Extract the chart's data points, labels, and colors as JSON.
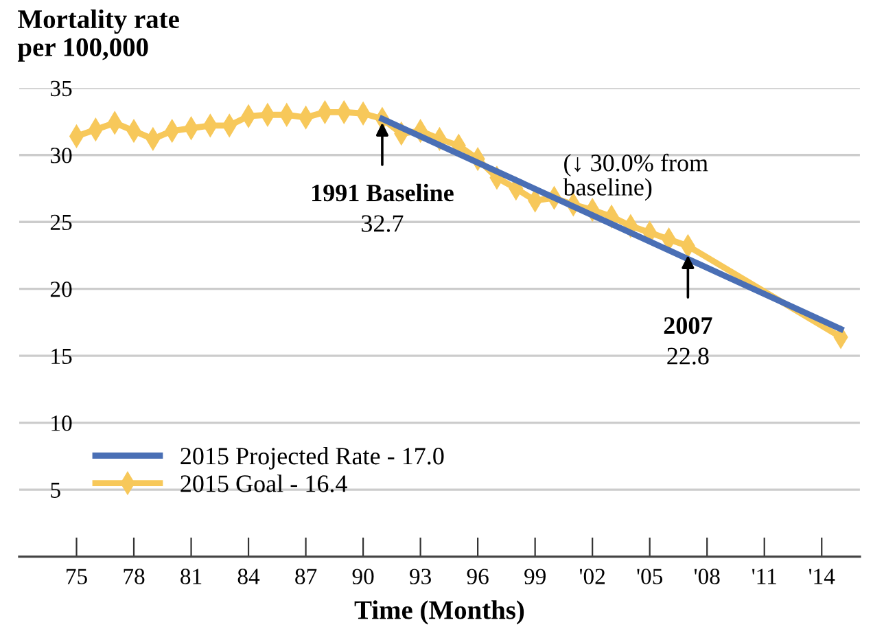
{
  "chart_data": {
    "type": "line",
    "title": "Mortality rate\nper 100,000",
    "xlabel": "Time (Months)",
    "series": [
      {
        "name": "2015 Projected Rate - 17.0",
        "color": "#4a6fb5",
        "x": [
          1991,
          2015
        ],
        "values": [
          32.7,
          17.0
        ],
        "marker": "none"
      },
      {
        "name": "2015 Goal - 16.4",
        "color": "#f7c85a",
        "x": [
          1975,
          1976,
          1977,
          1978,
          1979,
          1980,
          1981,
          1982,
          1983,
          1984,
          1985,
          1986,
          1987,
          1988,
          1989,
          1990,
          1991,
          1992,
          1993,
          1994,
          1995,
          1996,
          1997,
          1998,
          1999,
          2000,
          2001,
          2002,
          2003,
          2004,
          2005,
          2006,
          2007,
          2015
        ],
        "values": [
          31.4,
          31.9,
          32.4,
          31.8,
          31.2,
          31.8,
          32.0,
          32.2,
          32.2,
          32.9,
          33.0,
          33.0,
          32.8,
          33.2,
          33.2,
          33.1,
          32.7,
          31.6,
          31.8,
          31.2,
          30.7,
          29.7,
          28.3,
          27.5,
          26.6,
          26.8,
          26.3,
          25.9,
          25.4,
          24.7,
          24.2,
          23.7,
          23.2,
          16.4
        ],
        "marker": "diamond"
      }
    ],
    "xlim": [
      1972,
      2016
    ],
    "ylim": [
      0,
      35
    ],
    "xticks": [
      {
        "value": 1975,
        "label": "75"
      },
      {
        "value": 1978,
        "label": "78"
      },
      {
        "value": 1981,
        "label": "81"
      },
      {
        "value": 1984,
        "label": "84"
      },
      {
        "value": 1987,
        "label": "87"
      },
      {
        "value": 1990,
        "label": "90"
      },
      {
        "value": 1993,
        "label": "93"
      },
      {
        "value": 1996,
        "label": "96"
      },
      {
        "value": 1999,
        "label": "99"
      },
      {
        "value": 2002,
        "label": "'02"
      },
      {
        "value": 2005,
        "label": "'05"
      },
      {
        "value": 2008,
        "label": "'08"
      },
      {
        "value": 2011,
        "label": "'11"
      },
      {
        "value": 2014,
        "label": "'14"
      }
    ],
    "yticks": [
      5,
      10,
      15,
      20,
      25,
      30,
      35
    ],
    "annotations": [
      {
        "text": "1991 Baseline\n32.7",
        "x": 1991,
        "y": 32.7
      },
      {
        "text": "2007\n22.8",
        "x": 2007,
        "y": 22.8
      },
      "(↓ 30.0% from\nbaseline)"
    ],
    "grid": "y",
    "legend": "bottom left",
    "line_style": "solid"
  }
}
